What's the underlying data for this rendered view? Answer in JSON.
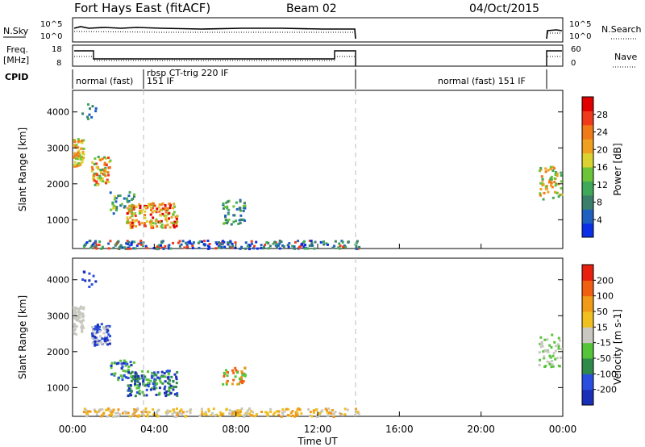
{
  "header": {
    "station": "Fort Hays East (fitACF)",
    "beam": "Beam 02",
    "date": "04/Oct/2015"
  },
  "panels": {
    "nsky_label": "N.Sky",
    "nsearch_label": "N.Search",
    "freq_label_1": "Freq.",
    "freq_label_2": "[MHz]",
    "nave_label": "Nave",
    "cpid_label": "CPID",
    "nsky_ticks": [
      "10^5",
      "10^0"
    ],
    "nsearch_ticks": [
      "10^5",
      "10^0"
    ],
    "freq_ticks": [
      "18",
      "8"
    ],
    "nave_ticks": [
      "60",
      "0"
    ]
  },
  "cpid": {
    "mode1": "normal (fast)",
    "mode2_line1": "rbsp CT-trig 220 IF",
    "mode2_line2": "151 IF",
    "mode3": "normal (fast) 151 IF"
  },
  "chart_data": [
    {
      "type": "heatmap",
      "parameter": "Power",
      "ylabel": "Slant Range [km]",
      "ylim": [
        200,
        4600
      ],
      "yticks": [
        "1000",
        "2000",
        "3000",
        "4000"
      ],
      "colorbar_label": "Power [dB]",
      "colorbar_ticks": [
        "4",
        "8",
        "12",
        "16",
        "20",
        "24",
        "28"
      ],
      "colorbar_colors": [
        "#0b2fe6",
        "#1e5fc0",
        "#3a7f6a",
        "#3fa85a",
        "#6cc43a",
        "#d9d230",
        "#f0a020",
        "#f07a18",
        "#ef3b1c",
        "#e00000"
      ]
    },
    {
      "type": "heatmap",
      "parameter": "Velocity",
      "ylabel": "Slant Range [km]",
      "ylim": [
        200,
        4600
      ],
      "yticks": [
        "1000",
        "2000",
        "3000",
        "4000"
      ],
      "colorbar_label": "Velocity [m s-1]",
      "colorbar_ticks": [
        "200",
        "100",
        "50",
        "15",
        "-15",
        "-50",
        "-100",
        "-200"
      ],
      "colorbar_colors": [
        "#1a2fb8",
        "#2a4fe0",
        "#2e8a4a",
        "#56c43a",
        "#c8c8c0",
        "#f0c020",
        "#f09a18",
        "#f06010",
        "#e82010"
      ]
    }
  ],
  "x_axis": {
    "label": "Time UT",
    "ticks": [
      "00:00",
      "04:00",
      "08:00",
      "12:00",
      "16:00",
      "20:00",
      "00:00"
    ],
    "range_hours": [
      0,
      24
    ]
  }
}
